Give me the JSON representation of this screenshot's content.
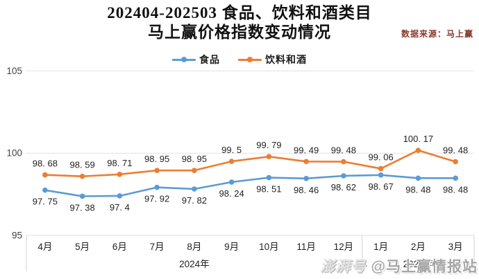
{
  "title": {
    "line1": "202404-202503 食品、饮料和酒类目",
    "line2": "马上赢价格指数变动情况"
  },
  "source_note": "数据来源：马上赢",
  "watermark": {
    "badge": "澎湃号",
    "handle": "@马上赢情报站"
  },
  "chart_data": {
    "type": "line",
    "title": "202404-202503 食品、饮料和酒类目 马上赢价格指数变动情况",
    "categories": [
      "4月",
      "5月",
      "6月",
      "7月",
      "8月",
      "9月",
      "10月",
      "11月",
      "12月",
      "1月",
      "2月",
      "3月"
    ],
    "year_groups": [
      {
        "label": "2024年",
        "from": 0,
        "to": 8
      },
      {
        "label": "2025年",
        "from": 9,
        "to": 11
      }
    ],
    "series": [
      {
        "name": "食品",
        "color": "#5B9BD5",
        "label_position": "below",
        "values": [
          97.75,
          97.38,
          97.4,
          97.92,
          97.82,
          98.24,
          98.51,
          98.46,
          98.62,
          98.67,
          98.48,
          98.48
        ]
      },
      {
        "name": "饮料和酒",
        "color": "#ED7D31",
        "label_position": "above",
        "values": [
          98.68,
          98.59,
          98.71,
          98.95,
          98.95,
          99.5,
          99.79,
          99.49,
          99.48,
          99.06,
          100.17,
          99.48
        ]
      }
    ],
    "yticks": [
      95,
      100,
      105
    ],
    "ylim": [
      95,
      105
    ],
    "grid": true,
    "legend_position": "top",
    "colors": {
      "gridline": "#e2e2e2",
      "axis_box": "#d2d2d2",
      "tick_text": "#404040",
      "label_text": "#1f1f1f"
    }
  }
}
